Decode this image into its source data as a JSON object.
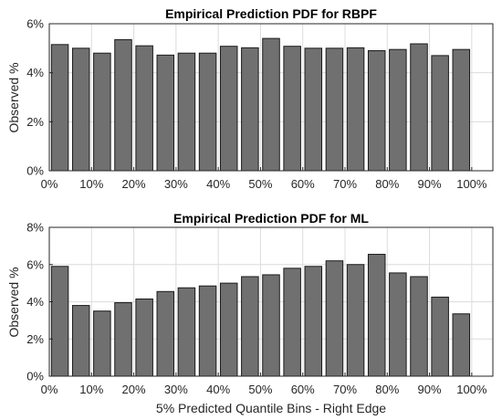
{
  "colors": {
    "bar_fill": "#707070",
    "bar_edge": "#1a1a1a",
    "grid": "#dcdcdc",
    "axis": "#262626"
  },
  "chart_data": [
    {
      "type": "bar",
      "title": "Empirical Prediction PDF for RBPF",
      "xlabel": "",
      "ylabel": "Observed %",
      "x": [
        5,
        10,
        15,
        20,
        25,
        30,
        35,
        40,
        45,
        50,
        55,
        60,
        65,
        70,
        75,
        80,
        85,
        90,
        95,
        100
      ],
      "values": [
        5.15,
        5.0,
        4.8,
        5.35,
        5.1,
        4.72,
        4.8,
        4.8,
        5.08,
        5.02,
        5.4,
        5.08,
        5.0,
        5.0,
        5.02,
        4.9,
        4.95,
        5.18,
        4.7,
        4.95
      ],
      "xlim": [
        0,
        105
      ],
      "ylim": [
        0,
        6
      ],
      "xticks": [
        0,
        10,
        20,
        30,
        40,
        50,
        60,
        70,
        80,
        90,
        100
      ],
      "xtick_labels": [
        "0%",
        "10%",
        "20%",
        "30%",
        "40%",
        "50%",
        "60%",
        "70%",
        "80%",
        "90%",
        "100%"
      ],
      "yticks": [
        0,
        2,
        4,
        6
      ],
      "ytick_labels": [
        "0%",
        "2%",
        "4%",
        "6%"
      ],
      "grid": true
    },
    {
      "type": "bar",
      "title": "Empirical Prediction PDF for ML",
      "xlabel": "5% Predicted Quantile Bins - Right Edge",
      "ylabel": "Observed %",
      "x": [
        5,
        10,
        15,
        20,
        25,
        30,
        35,
        40,
        45,
        50,
        55,
        60,
        65,
        70,
        75,
        80,
        85,
        90,
        95,
        100
      ],
      "values": [
        5.9,
        3.8,
        3.5,
        3.95,
        4.15,
        4.55,
        4.75,
        4.85,
        5.0,
        5.35,
        5.45,
        5.8,
        5.9,
        6.2,
        6.0,
        6.55,
        5.55,
        5.35,
        4.25,
        3.35
      ],
      "xlim": [
        0,
        105
      ],
      "ylim": [
        0,
        8
      ],
      "xticks": [
        0,
        10,
        20,
        30,
        40,
        50,
        60,
        70,
        80,
        90,
        100
      ],
      "xtick_labels": [
        "0%",
        "10%",
        "20%",
        "30%",
        "40%",
        "50%",
        "60%",
        "70%",
        "80%",
        "90%",
        "100%"
      ],
      "yticks": [
        0,
        2,
        4,
        6,
        8
      ],
      "ytick_labels": [
        "0%",
        "2%",
        "4%",
        "6%",
        "8%"
      ],
      "grid": true
    }
  ]
}
